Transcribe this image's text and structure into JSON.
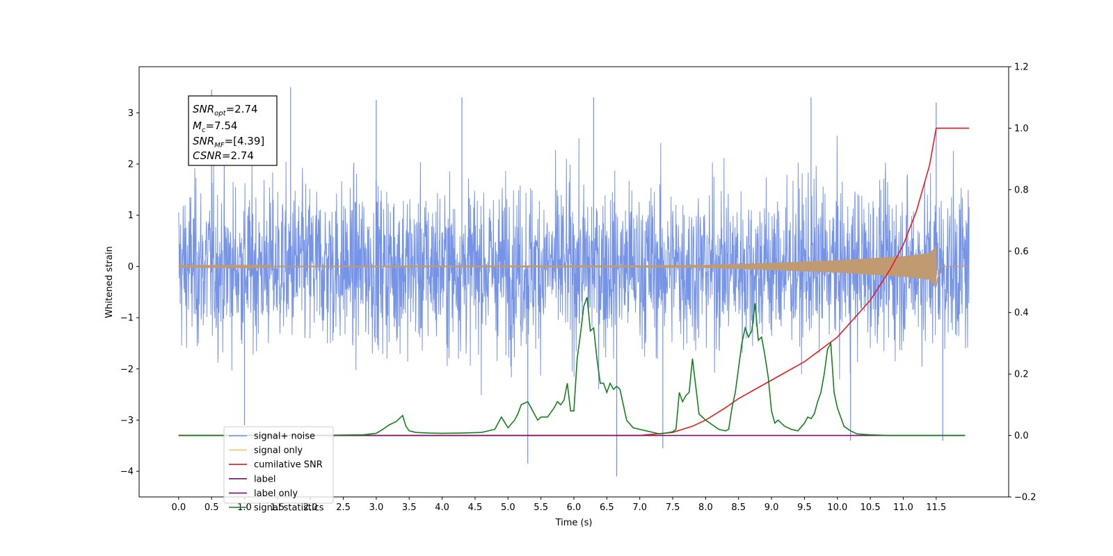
{
  "chart_data": {
    "type": "line",
    "xlabel": "Time (s)",
    "ylabel": "Whitened strain",
    "xlim": [
      -0.6,
      12.6
    ],
    "ylim": [
      -4.5,
      3.9
    ],
    "y2lim": [
      -0.2,
      1.2
    ],
    "grid": false,
    "legend_position": "lower-left",
    "x_ticks": [
      "0.0",
      "0.5",
      "1.0",
      "1.5",
      "2.0",
      "2.5",
      "3.0",
      "3.5",
      "4.0",
      "4.5",
      "5.0",
      "5.5",
      "6.0",
      "6.5",
      "7.0",
      "7.5",
      "8.0",
      "8.5",
      "9.0",
      "9.5",
      "10.0",
      "10.5",
      "11.0",
      "11.5"
    ],
    "x_tick_values": [
      0,
      0.5,
      1,
      1.5,
      2,
      2.5,
      3,
      3.5,
      4,
      4.5,
      5,
      5.5,
      6,
      6.5,
      7,
      7.5,
      8,
      8.5,
      9,
      9.5,
      10,
      10.5,
      11,
      11.5
    ],
    "y_ticks": [
      "−4",
      "−3",
      "−2",
      "−1",
      "0",
      "1",
      "2",
      "3"
    ],
    "y_tick_values": [
      -4,
      -3,
      -2,
      -1,
      0,
      1,
      2,
      3
    ],
    "y2_ticks": [
      "−0.2",
      "0.0",
      "0.2",
      "0.4",
      "0.6",
      "0.8",
      "1.0",
      "1.2"
    ],
    "y2_tick_values": [
      -0.2,
      0,
      0.2,
      0.4,
      0.6,
      0.8,
      1.0,
      1.2
    ],
    "annotation": {
      "snr_opt": {
        "base": "SNR",
        "sub": "opt",
        "value": "=2.74"
      },
      "mc": {
        "base": "M",
        "sub": "c",
        "value": "=7.54"
      },
      "snr_mf": {
        "base": "SNR",
        "sub": "MF",
        "value": "=[4.39]"
      },
      "csnr": {
        "base": "CSNR",
        "value": "=2.74"
      }
    },
    "series": [
      {
        "name": "signal+ noise",
        "color": "#6f8ee6",
        "axis": "left",
        "style": "noise",
        "x_range": [
          0,
          12.0
        ],
        "typical_amplitude": 1.9,
        "extreme_spikes": [
          {
            "x": 0.5,
            "y": 3.45
          },
          {
            "x": 1.7,
            "y": 3.5
          },
          {
            "x": 3.0,
            "y": 3.25
          },
          {
            "x": 4.3,
            "y": 3.3
          },
          {
            "x": 6.3,
            "y": 3.3
          },
          {
            "x": 9.6,
            "y": 3.3
          },
          {
            "x": 11.5,
            "y": 3.2
          },
          {
            "x": 1.0,
            "y": -3.1
          },
          {
            "x": 5.3,
            "y": -3.85
          },
          {
            "x": 6.65,
            "y": -4.1
          },
          {
            "x": 7.35,
            "y": -3.55
          },
          {
            "x": 10.2,
            "y": -3.4
          },
          {
            "x": 11.6,
            "y": -3.4
          }
        ]
      },
      {
        "name": "signal only",
        "color": "#c09a70",
        "axis": "left",
        "style": "chirp",
        "x_range": [
          0,
          12.0
        ],
        "merger_time": 11.5,
        "amplitude_envelope": [
          {
            "x": 0,
            "y": 0.01
          },
          {
            "x": 7.0,
            "y": 0.02
          },
          {
            "x": 8.0,
            "y": 0.03
          },
          {
            "x": 9.0,
            "y": 0.07
          },
          {
            "x": 10.0,
            "y": 0.12
          },
          {
            "x": 11.0,
            "y": 0.2
          },
          {
            "x": 11.4,
            "y": 0.26
          },
          {
            "x": 11.5,
            "y": 0.4
          }
        ]
      },
      {
        "name": "cumilative SNR",
        "color": "#e8191e",
        "axis": "right",
        "x": [
          0,
          7.0,
          7.5,
          7.8,
          8.0,
          8.3,
          8.5,
          9.0,
          9.5,
          10.0,
          10.5,
          10.8,
          11.0,
          11.2,
          11.4,
          11.5,
          11.55,
          12.0
        ],
        "values": [
          0,
          0,
          0.01,
          0.03,
          0.05,
          0.09,
          0.12,
          0.18,
          0.24,
          0.32,
          0.44,
          0.54,
          0.62,
          0.73,
          0.88,
          1.0,
          1.0,
          1.0
        ]
      },
      {
        "name": "label",
        "color": "#7b0e6f",
        "axis": "right",
        "x": [
          0,
          11.94
        ],
        "values": [
          0,
          0
        ]
      },
      {
        "name": "label only",
        "color": "#7b0e6f",
        "axis": "right",
        "hidden_line": true
      },
      {
        "name": "signal statistics",
        "color": "#12801a",
        "axis": "right",
        "x": [
          0,
          2.0,
          2.8,
          3.0,
          3.1,
          3.2,
          3.3,
          3.4,
          3.45,
          3.5,
          3.6,
          3.8,
          4.0,
          4.3,
          4.6,
          4.8,
          4.9,
          5.0,
          5.1,
          5.15,
          5.2,
          5.3,
          5.4,
          5.45,
          5.5,
          5.6,
          5.7,
          5.75,
          5.8,
          5.85,
          5.9,
          5.95,
          6.0,
          6.05,
          6.1,
          6.15,
          6.2,
          6.25,
          6.3,
          6.35,
          6.4,
          6.45,
          6.5,
          6.55,
          6.6,
          6.65,
          6.7,
          6.8,
          6.9,
          7.0,
          7.1,
          7.2,
          7.3,
          7.4,
          7.5,
          7.55,
          7.6,
          7.65,
          7.7,
          7.75,
          7.8,
          7.85,
          7.9,
          8.0,
          8.1,
          8.2,
          8.3,
          8.35,
          8.4,
          8.45,
          8.5,
          8.55,
          8.6,
          8.65,
          8.7,
          8.75,
          8.8,
          8.85,
          8.9,
          8.95,
          9.0,
          9.05,
          9.1,
          9.2,
          9.3,
          9.4,
          9.5,
          9.55,
          9.6,
          9.65,
          9.7,
          9.75,
          9.8,
          9.85,
          9.9,
          9.95,
          10.0,
          10.05,
          10.1,
          10.2,
          10.3,
          10.5,
          10.8,
          11.0,
          11.5,
          11.94
        ],
        "values": [
          0,
          0,
          0.002,
          0.007,
          0.02,
          0.035,
          0.045,
          0.065,
          0.03,
          0.015,
          0.01,
          0.008,
          0.007,
          0.008,
          0.01,
          0.02,
          0.06,
          0.025,
          0.05,
          0.07,
          0.1,
          0.11,
          0.07,
          0.05,
          0.06,
          0.06,
          0.09,
          0.11,
          0.1,
          0.115,
          0.17,
          0.08,
          0.08,
          0.25,
          0.33,
          0.42,
          0.45,
          0.34,
          0.35,
          0.25,
          0.17,
          0.17,
          0.14,
          0.17,
          0.15,
          0.16,
          0.15,
          0.05,
          0.025,
          0.02,
          0.015,
          0.01,
          0.005,
          0.008,
          0.012,
          0.02,
          0.14,
          0.11,
          0.13,
          0.14,
          0.25,
          0.16,
          0.07,
          0.05,
          0.035,
          0.02,
          0.015,
          0.02,
          0.09,
          0.14,
          0.22,
          0.3,
          0.35,
          0.32,
          0.34,
          0.43,
          0.31,
          0.32,
          0.26,
          0.19,
          0.08,
          0.04,
          0.05,
          0.03,
          0.02,
          0.015,
          0.04,
          0.06,
          0.055,
          0.07,
          0.11,
          0.14,
          0.2,
          0.28,
          0.3,
          0.14,
          0.09,
          0.06,
          0.03,
          0.015,
          0.005,
          0.002,
          0,
          0,
          0,
          0
        ]
      }
    ],
    "legend": [
      "signal+ noise",
      "signal only",
      "cumilative SNR",
      "label",
      "label only",
      "signal statistics"
    ]
  }
}
